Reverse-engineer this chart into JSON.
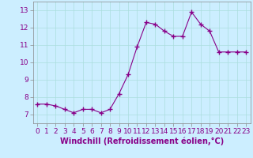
{
  "x": [
    0,
    1,
    2,
    3,
    4,
    5,
    6,
    7,
    8,
    9,
    10,
    11,
    12,
    13,
    14,
    15,
    16,
    17,
    18,
    19,
    20,
    21,
    22,
    23
  ],
  "y": [
    7.6,
    7.6,
    7.5,
    7.3,
    7.1,
    7.3,
    7.3,
    7.1,
    7.3,
    8.2,
    9.3,
    10.9,
    12.3,
    12.2,
    11.8,
    11.5,
    11.5,
    12.9,
    12.2,
    11.8,
    10.6,
    10.6,
    10.6,
    10.6
  ],
  "line_color": "#880088",
  "marker": "+",
  "marker_size": 4,
  "background_color": "#cceeff",
  "grid_color": "#aadddd",
  "xlabel": "Windchill (Refroidissement éolien,°C)",
  "xlabel_fontsize": 7,
  "tick_fontsize": 6.5,
  "ylim": [
    6.5,
    13.5
  ],
  "xlim": [
    -0.5,
    23.5
  ],
  "yticks": [
    7,
    8,
    9,
    10,
    11,
    12,
    13
  ],
  "xticks": [
    0,
    1,
    2,
    3,
    4,
    5,
    6,
    7,
    8,
    9,
    10,
    11,
    12,
    13,
    14,
    15,
    16,
    17,
    18,
    19,
    20,
    21,
    22,
    23
  ],
  "tick_color": "#880088",
  "spine_color": "#888888"
}
